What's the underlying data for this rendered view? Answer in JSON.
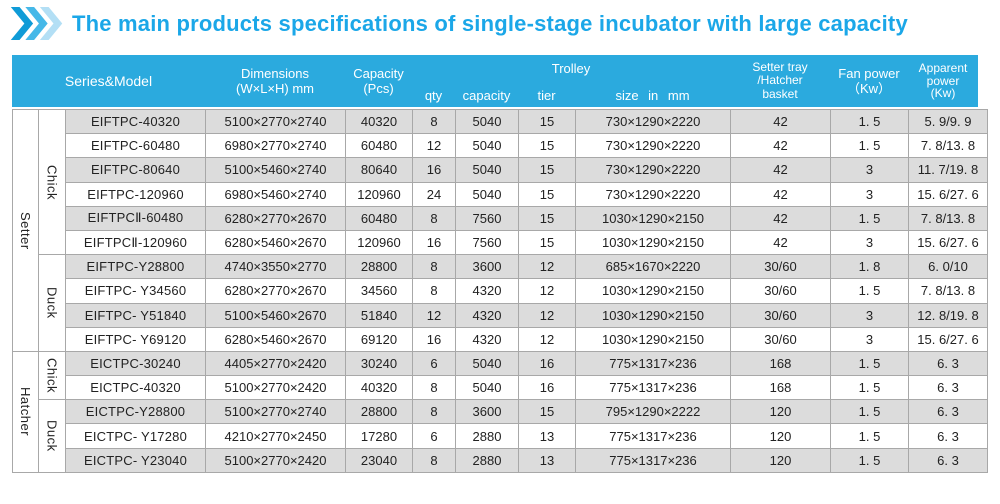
{
  "title": "The main products specifications of single-stage incubator with large capacity",
  "colors": {
    "title_text": "#1ba7e8",
    "header_bg": "#2baade",
    "row_shade": "#dcdcdc",
    "table_border": "#a8a8a8",
    "chevron_1": "#0f9bd7",
    "chevron_2": "#45b8e8",
    "chevron_3": "#b3dff5"
  },
  "table": {
    "header": {
      "series_model": "Series&Model",
      "dimensions_line1": "Dimensions",
      "dimensions_line2": "(W×L×H) mm",
      "capacity_line1": "Capacity",
      "capacity_line2": "(Pcs)",
      "trolley": "Trolley",
      "qty": "qty",
      "capacity_sub": "capacity",
      "tier": "tier",
      "size": "size in mm",
      "tray_line1": "Setter tray",
      "tray_line2": "/Hatcher",
      "tray_line3": "basket",
      "fan_line1": "Fan power",
      "fan_line2": "（Kw）",
      "apparent_line1": "Apparent",
      "apparent_line2": "power",
      "apparent_line3": "(Kw)"
    },
    "series_groups": [
      {
        "label": "Setter",
        "rows": 10
      },
      {
        "label": "Hatcher",
        "rows": 5
      }
    ],
    "type_groups": [
      {
        "label": "Chick",
        "rows": 6
      },
      {
        "label": "Duck",
        "rows": 4
      },
      {
        "label": "Chick",
        "rows": 2
      },
      {
        "label": "Duck",
        "rows": 3
      }
    ],
    "rows": [
      {
        "model": "EIFTPC-40320",
        "dims": "5100×2770×2740",
        "capacity_pcs": "40320",
        "qty": "8",
        "trolley_capacity": "5040",
        "tier": "15",
        "size": "730×1290×2220",
        "tray": "42",
        "fan": "1. 5",
        "apparent": "5. 9/9. 9"
      },
      {
        "model": "EIFTPC-60480",
        "dims": "6980×2770×2740",
        "capacity_pcs": "60480",
        "qty": "12",
        "trolley_capacity": "5040",
        "tier": "15",
        "size": "730×1290×2220",
        "tray": "42",
        "fan": "1. 5",
        "apparent": "7. 8/13. 8"
      },
      {
        "model": "EIFTPC-80640",
        "dims": "5100×5460×2740",
        "capacity_pcs": "80640",
        "qty": "16",
        "trolley_capacity": "5040",
        "tier": "15",
        "size": "730×1290×2220",
        "tray": "42",
        "fan": "3",
        "apparent": "11. 7/19. 8"
      },
      {
        "model": "EIFTPC-120960",
        "dims": "6980×5460×2740",
        "capacity_pcs": "120960",
        "qty": "24",
        "trolley_capacity": "5040",
        "tier": "15",
        "size": "730×1290×2220",
        "tray": "42",
        "fan": "3",
        "apparent": "15. 6/27. 6"
      },
      {
        "model": "EIFTPCⅡ-60480",
        "dims": "6280×2770×2670",
        "capacity_pcs": "60480",
        "qty": "8",
        "trolley_capacity": "7560",
        "tier": "15",
        "size": "1030×1290×2150",
        "tray": "42",
        "fan": "1. 5",
        "apparent": "7. 8/13. 8"
      },
      {
        "model": "EIFTPCⅡ-120960",
        "dims": "6280×5460×2670",
        "capacity_pcs": "120960",
        "qty": "16",
        "trolley_capacity": "7560",
        "tier": "15",
        "size": "1030×1290×2150",
        "tray": "42",
        "fan": "3",
        "apparent": "15. 6/27. 6"
      },
      {
        "model": "EIFTPC-Y28800",
        "dims": "4740×3550×2770",
        "capacity_pcs": "28800",
        "qty": "8",
        "trolley_capacity": "3600",
        "tier": "12",
        "size": "685×1670×2220",
        "tray": "30/60",
        "fan": "1. 8",
        "apparent": "6. 0/10"
      },
      {
        "model": "EIFTPC- Y34560",
        "dims": "6280×2770×2670",
        "capacity_pcs": "34560",
        "qty": "8",
        "trolley_capacity": "4320",
        "tier": "12",
        "size": "1030×1290×2150",
        "tray": "30/60",
        "fan": "1. 5",
        "apparent": "7. 8/13. 8"
      },
      {
        "model": "EIFTPC- Y51840",
        "dims": "5100×5460×2670",
        "capacity_pcs": "51840",
        "qty": "12",
        "trolley_capacity": "4320",
        "tier": "12",
        "size": "1030×1290×2150",
        "tray": "30/60",
        "fan": "3",
        "apparent": "12. 8/19. 8"
      },
      {
        "model": "EIFTPC- Y69120",
        "dims": "6280×5460×2670",
        "capacity_pcs": "69120",
        "qty": "16",
        "trolley_capacity": "4320",
        "tier": "12",
        "size": "1030×1290×2150",
        "tray": "30/60",
        "fan": "3",
        "apparent": "15. 6/27. 6"
      },
      {
        "model": "EICTPC-30240",
        "dims": "4405×2770×2420",
        "capacity_pcs": "30240",
        "qty": "6",
        "trolley_capacity": "5040",
        "tier": "16",
        "size": "775×1317×236",
        "tray": "168",
        "fan": "1. 5",
        "apparent": "6. 3"
      },
      {
        "model": "EICTPC-40320",
        "dims": "5100×2770×2420",
        "capacity_pcs": "40320",
        "qty": "8",
        "trolley_capacity": "5040",
        "tier": "16",
        "size": "775×1317×236",
        "tray": "168",
        "fan": "1. 5",
        "apparent": "6. 3"
      },
      {
        "model": "EICTPC-Y28800",
        "dims": "5100×2770×2740",
        "capacity_pcs": "28800",
        "qty": "8",
        "trolley_capacity": "3600",
        "tier": "15",
        "size": "795×1290×2222",
        "tray": "120",
        "fan": "1. 5",
        "apparent": "6. 3"
      },
      {
        "model": "EICTPC- Y17280",
        "dims": "4210×2770×2450",
        "capacity_pcs": "17280",
        "qty": "6",
        "trolley_capacity": "2880",
        "tier": "13",
        "size": "775×1317×236",
        "tray": "120",
        "fan": "1. 5",
        "apparent": "6. 3"
      },
      {
        "model": "EICTPC- Y23040",
        "dims": "5100×2770×2420",
        "capacity_pcs": "23040",
        "qty": "8",
        "trolley_capacity": "2880",
        "tier": "13",
        "size": "775×1317×236",
        "tray": "120",
        "fan": "1. 5",
        "apparent": "6. 3"
      }
    ]
  }
}
